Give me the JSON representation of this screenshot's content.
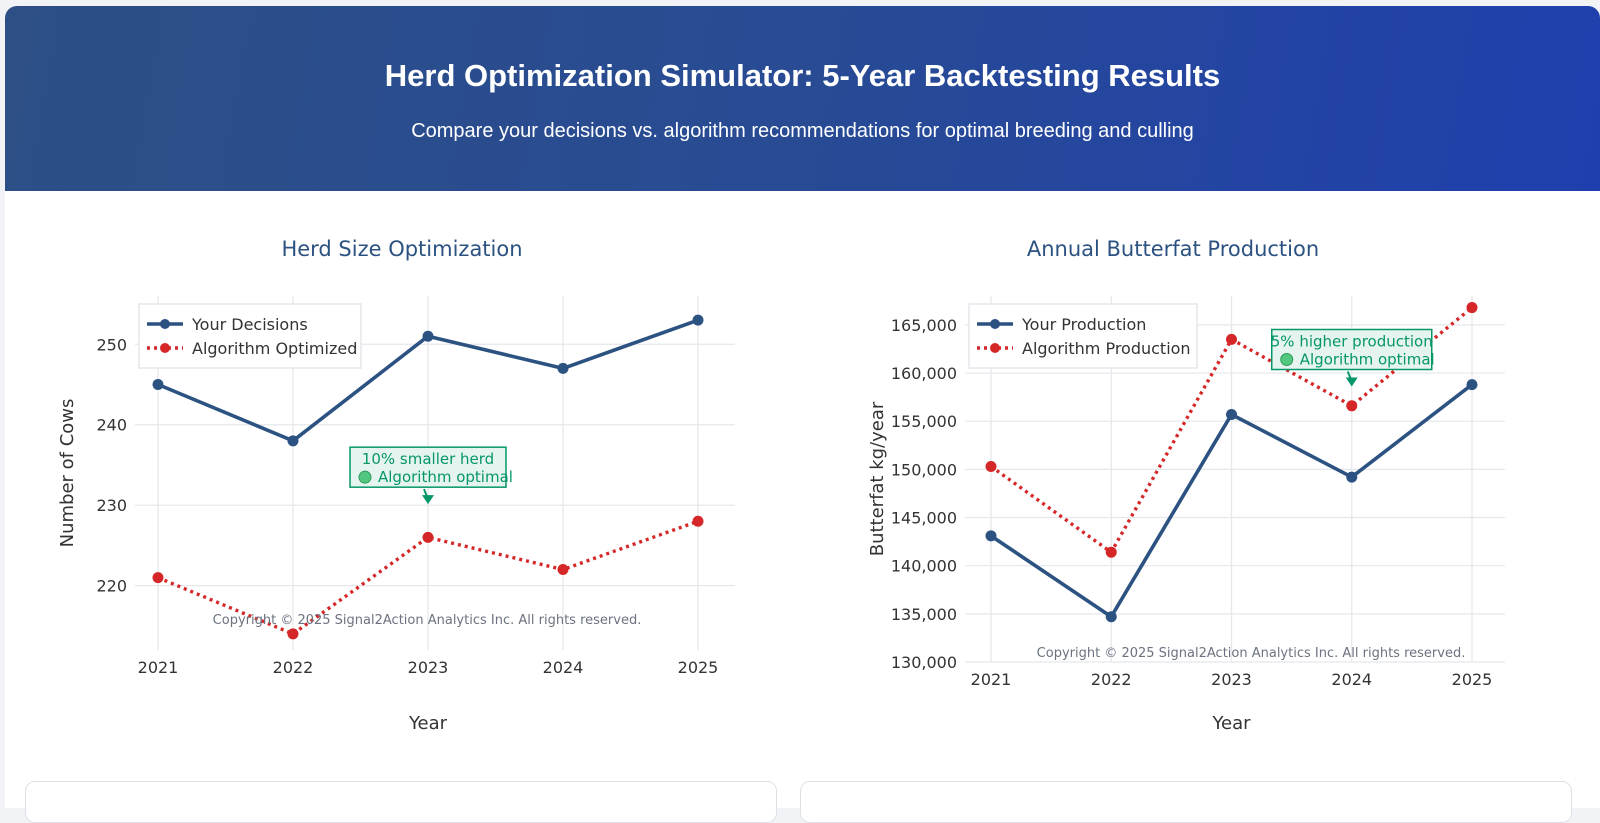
{
  "header": {
    "title": "Herd Optimization Simulator: 5-Year Backtesting Results",
    "subtitle": "Compare your decisions vs. algorithm recommendations for optimal breeding and culling"
  },
  "colors": {
    "primary": "#2c5282",
    "algorithm": "#d62728",
    "annotation": "#059669"
  },
  "chart_data": [
    {
      "type": "line",
      "title": "Herd Size Optimization",
      "xlabel": "Year",
      "ylabel": "Number of Cows",
      "categories": [
        "2021",
        "2022",
        "2023",
        "2024",
        "2025"
      ],
      "ylim": [
        212,
        256
      ],
      "yticks": [
        220,
        230,
        240,
        250
      ],
      "series": [
        {
          "name": "Your Decisions",
          "values": [
            245,
            238,
            251,
            247,
            253
          ],
          "style": "solid"
        },
        {
          "name": "Algorithm Optimized",
          "values": [
            221,
            214,
            226,
            222,
            228
          ],
          "style": "dotted"
        }
      ],
      "annotation": {
        "line1": "10% smaller herd",
        "line2": "Algorithm optimal",
        "x": "2023",
        "y": 230
      },
      "copyright": "Copyright © 2025 Signal2Action Analytics Inc. All rights reserved.",
      "legend": "top-left"
    },
    {
      "type": "line",
      "title": "Annual Butterfat Production",
      "xlabel": "Year",
      "ylabel": "Butterfat kg/year",
      "categories": [
        "2021",
        "2022",
        "2023",
        "2024",
        "2025"
      ],
      "ylim": [
        130000,
        168000
      ],
      "yticks": [
        130000,
        135000,
        140000,
        145000,
        150000,
        155000,
        160000,
        165000
      ],
      "series": [
        {
          "name": "Your Production",
          "values": [
            143100,
            134700,
            155700,
            149200,
            158800
          ],
          "style": "solid"
        },
        {
          "name": "Algorithm Production",
          "values": [
            150300,
            141400,
            163500,
            156600,
            166800
          ],
          "style": "dotted"
        }
      ],
      "annotation": {
        "line1": "5% higher production",
        "line2": "Algorithm optimal",
        "x": "2024",
        "y": 158500
      },
      "copyright": "Copyright © 2025 Signal2Action Analytics Inc. All rights reserved.",
      "legend": "top-left"
    }
  ]
}
